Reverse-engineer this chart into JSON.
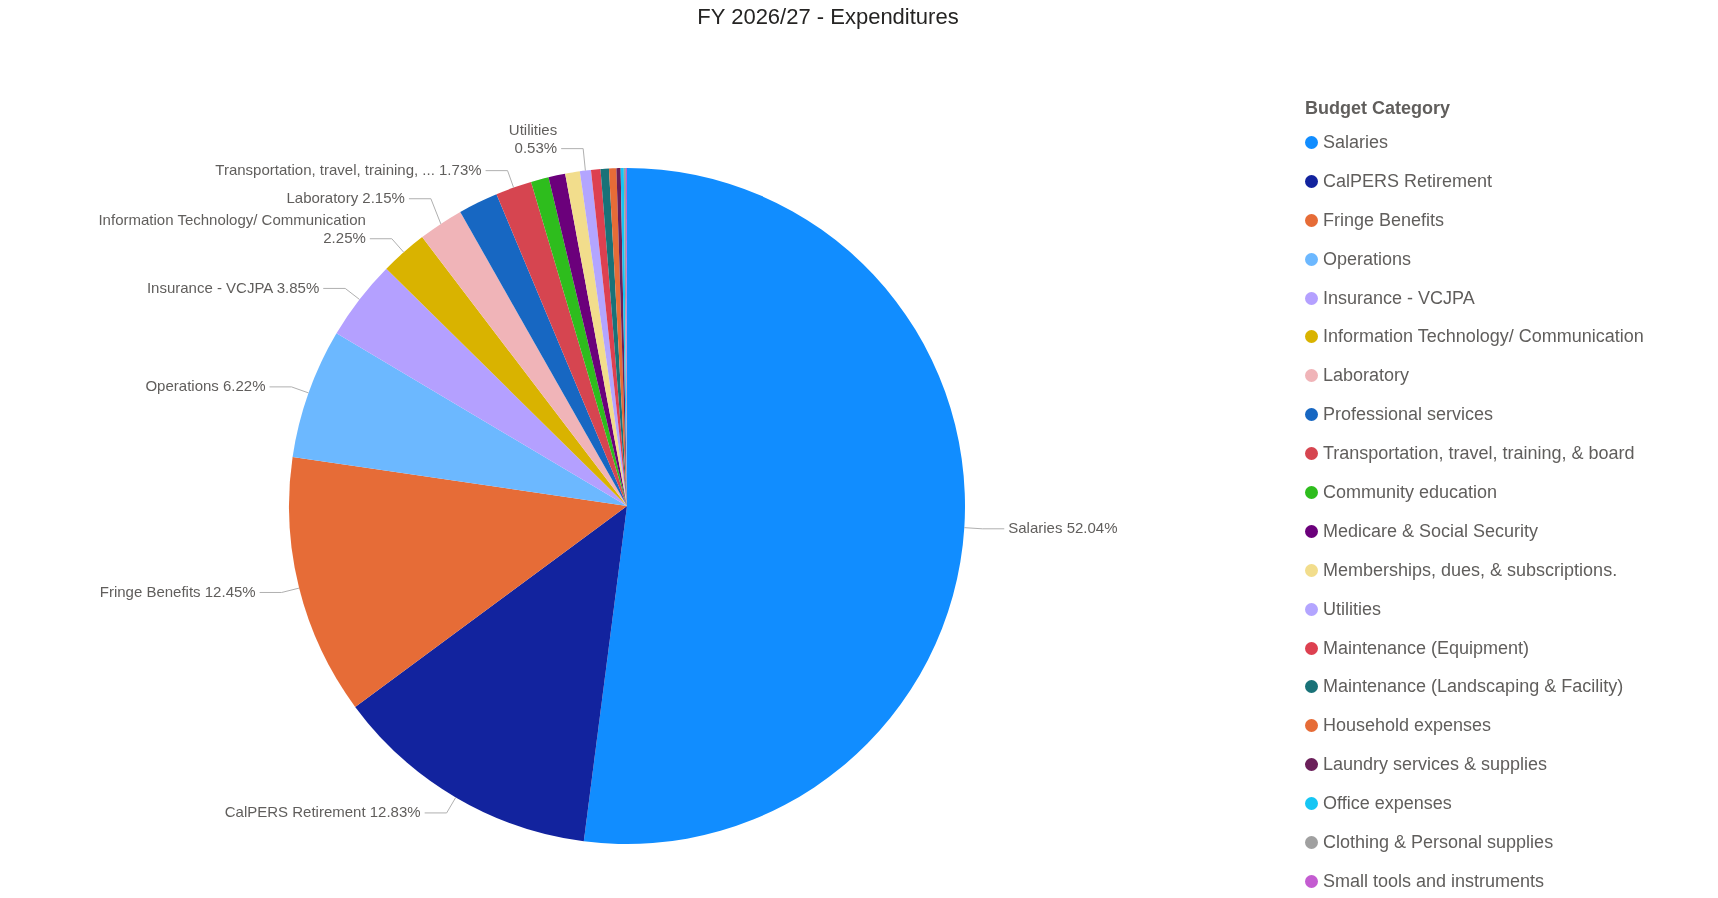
{
  "chart_data": {
    "type": "pie",
    "title": "FY 2026/27 - Expenditures",
    "legend_title": "Budget Category",
    "legend": "right",
    "categories": [
      "Salaries",
      "CalPERS Retirement",
      "Fringe Benefits",
      "Operations",
      "Insurance - VCJPA",
      "Information Technology/ Communication",
      "Laboratory",
      "Professional services",
      "Transportation, travel, training, & board",
      "Community education",
      "Medicare & Social Security",
      "Memberships, dues, & subscriptions.",
      "Utilities",
      "Maintenance (Equipment)",
      "Maintenance (Landscaping & Facility)",
      "Household expenses",
      "Laundry services & supplies",
      "Office expenses",
      "Clothing & Personal supplies",
      "Small tools and instruments"
    ],
    "values": [
      52.04,
      12.83,
      12.45,
      6.22,
      3.85,
      2.25,
      2.15,
      1.9,
      1.73,
      0.85,
      0.8,
      0.7,
      0.53,
      0.45,
      0.4,
      0.35,
      0.2,
      0.15,
      0.1,
      0.05
    ],
    "colors": [
      "#118dff",
      "#12239e",
      "#e66c37",
      "#6cb8ff",
      "#b4a0ff",
      "#d9b300",
      "#f0b4b8",
      "#1767c2",
      "#d64550",
      "#2ebd1d",
      "#6b007b",
      "#f2dd8c",
      "#b3a5ff",
      "#dd4050",
      "#197278",
      "#e66c37",
      "#6b1f5a",
      "#15c6f4",
      "#a0a0a0",
      "#c45cd1"
    ],
    "value_labels": [
      "Salaries 52.04%",
      "CalPERS Retirement 12.83%",
      "Fringe Benefits 12.45%",
      "Operations 6.22%",
      "Insurance - VCJPA 3.85%",
      "Information Technology/ Communication\n2.25%",
      "Laboratory 2.15%",
      null,
      "Transportation, travel, training, ... 1.73%",
      null,
      null,
      null,
      "Utilities\n0.53%",
      null,
      null,
      null,
      null,
      null,
      null,
      null
    ]
  }
}
